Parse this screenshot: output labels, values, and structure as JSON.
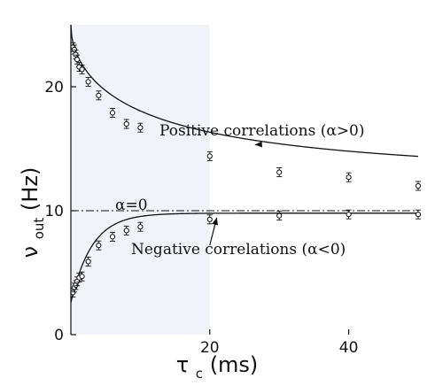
{
  "chart_data": {
    "type": "scatter",
    "title": "",
    "xlabel": {
      "symbol": "τ",
      "sub": "c",
      "unit": "(ms)"
    },
    "ylabel": {
      "symbol": "ν",
      "sub": "out",
      "unit": "(Hz)"
    },
    "xlim": [
      0,
      50
    ],
    "ylim": [
      0,
      25
    ],
    "xticks": [
      20,
      40
    ],
    "yticks": [
      0,
      10,
      20
    ],
    "shaded_region_x": [
      0,
      20
    ],
    "reference_line": {
      "y": 10,
      "label": "α=0"
    },
    "annotations": [
      {
        "text": "Positive correlations (α>0)"
      },
      {
        "text": "Negative correlations (α<0)"
      }
    ],
    "series": [
      {
        "x": [
          0.3,
          0.5,
          0.7,
          0.9,
          1.2,
          1.6,
          2.5,
          4,
          6,
          8,
          10,
          20,
          30,
          40,
          50
        ],
        "values": [
          23.2,
          23.0,
          22.6,
          22.2,
          21.6,
          21.4,
          20.4,
          19.3,
          17.9,
          17.0,
          16.7,
          14.4,
          13.1,
          12.7,
          12.0
        ],
        "fit": {
          "y0": 25.0,
          "amp": 13.0,
          "tau": 25.0,
          "power": 0.5
        }
      },
      {
        "x": [
          0.3,
          0.5,
          0.7,
          0.9,
          1.2,
          1.6,
          2.5,
          4,
          6,
          8,
          10,
          20,
          30,
          40,
          50
        ],
        "values": [
          3.4,
          3.8,
          4.0,
          4.3,
          4.6,
          4.7,
          5.9,
          7.2,
          7.9,
          8.4,
          8.7,
          9.3,
          9.6,
          9.7,
          9.7
        ],
        "fit": {
          "y0": 2.6,
          "amp": 7.2,
          "k": 0.33
        }
      }
    ]
  }
}
